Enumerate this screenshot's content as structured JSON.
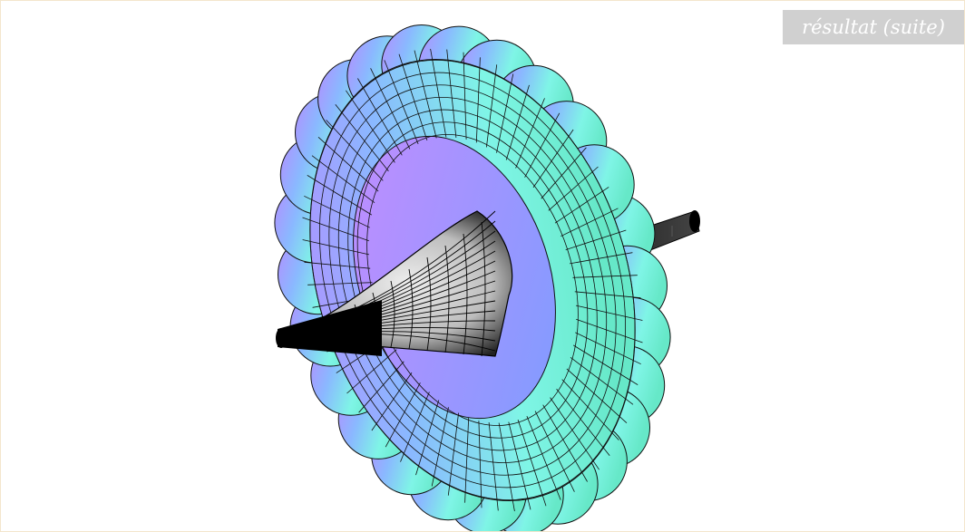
{
  "header": {
    "badge_label": "résultat (suite)"
  },
  "figure": {
    "icon": "toroidal-surface-with-funnel-figure",
    "colors": {
      "torus_cyan": "#7ff5e6",
      "torus_blue": "#8ab8ff",
      "torus_violet": "#b58cff",
      "funnel_light": "#d6d6d6",
      "funnel_dark": "#000000",
      "edge": "#111111",
      "frame_border": "#f3e6cc",
      "badge_bg": "#d0d0d0"
    }
  }
}
